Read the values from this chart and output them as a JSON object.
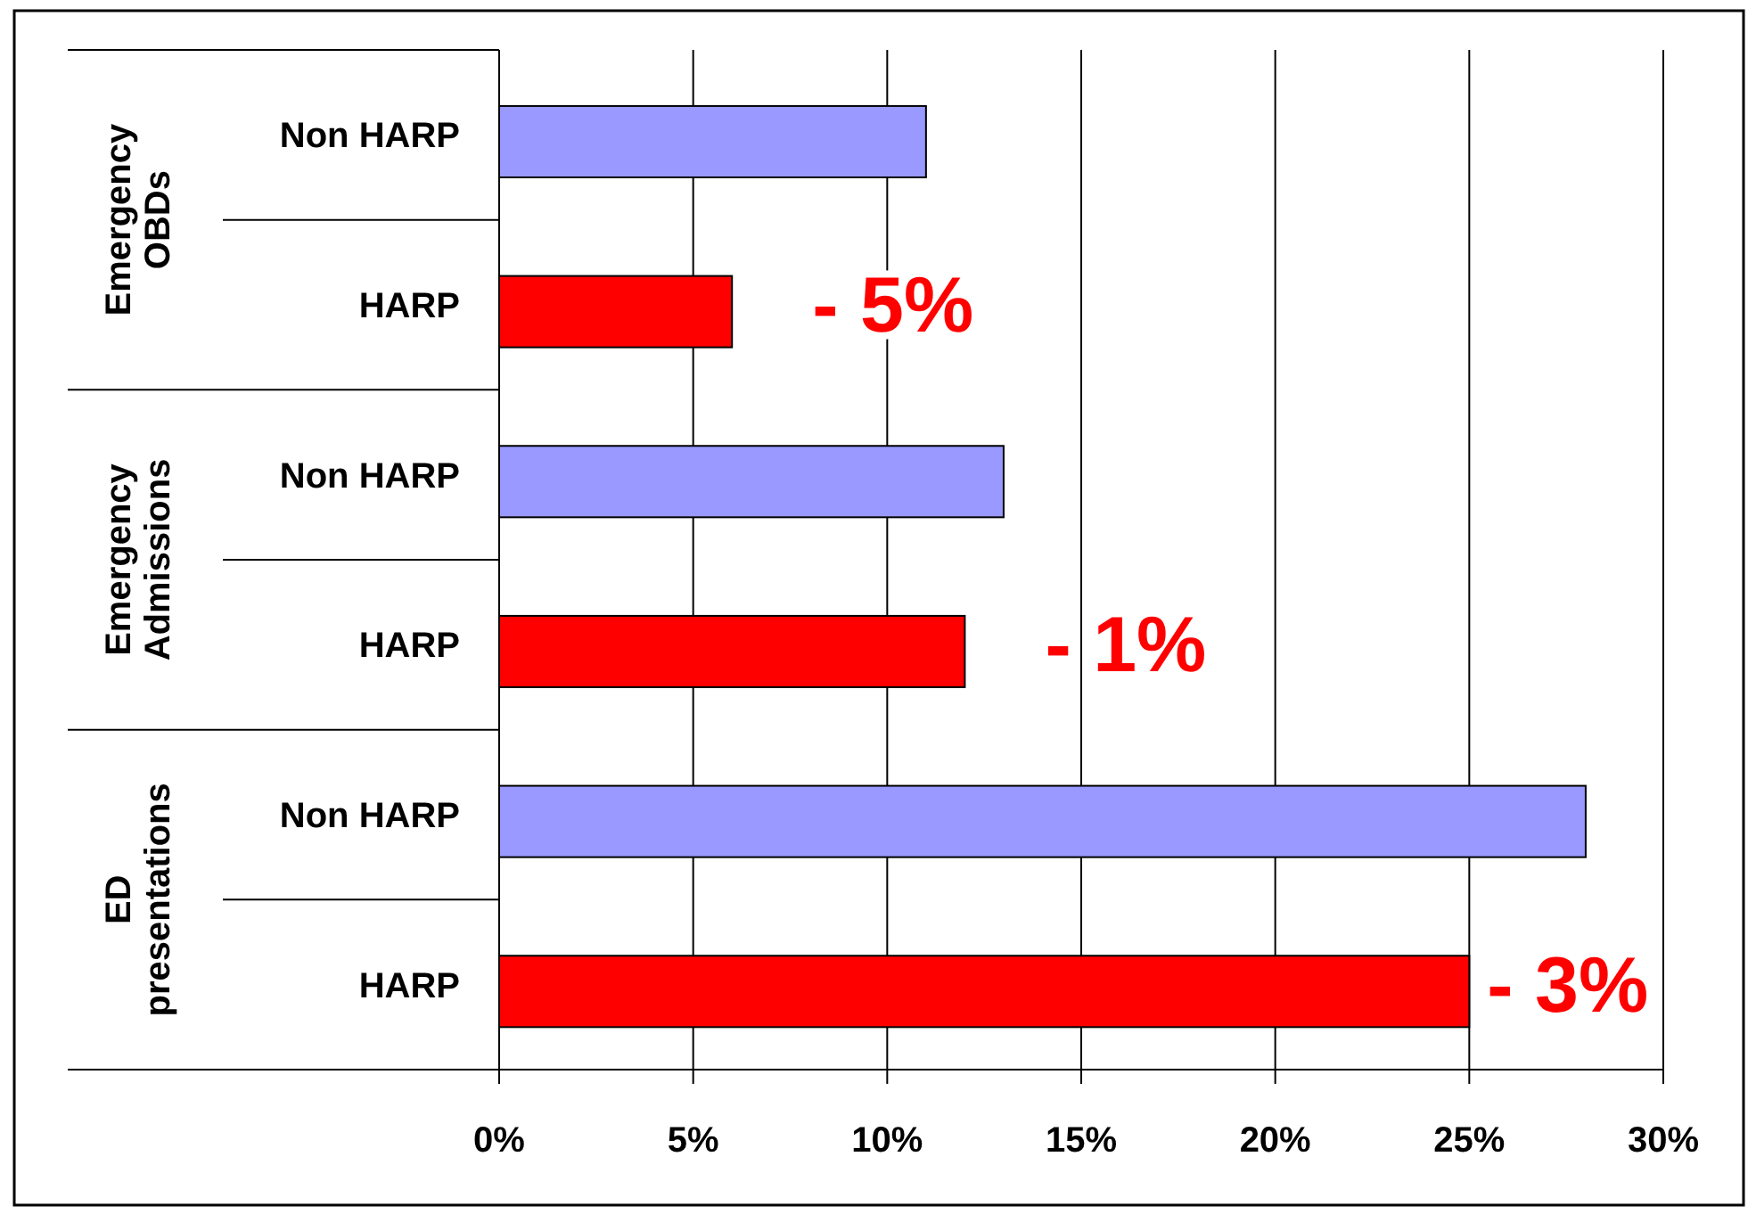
{
  "chart_data": {
    "type": "bar",
    "orientation": "horizontal",
    "categories": [
      "Non HARP",
      "HARP",
      "Non HARP",
      "HARP",
      "Non HARP",
      "HARP"
    ],
    "values": [
      11,
      6,
      13,
      12,
      28,
      25
    ],
    "colors": [
      "#9999ff",
      "#ff0000",
      "#9999ff",
      "#ff0000",
      "#9999ff",
      "#ff0000"
    ],
    "xlim": [
      0,
      30
    ],
    "xticks": [
      {
        "value": 0,
        "label": "0%"
      },
      {
        "value": 5,
        "label": "5%"
      },
      {
        "value": 10,
        "label": "10%"
      },
      {
        "value": 15,
        "label": "15%"
      },
      {
        "value": 20,
        "label": "20%"
      },
      {
        "value": 25,
        "label": "25%"
      },
      {
        "value": 30,
        "label": "30%"
      }
    ],
    "grid": "x",
    "annotations": [
      "Emergency OBDs",
      "Emergency Admissions",
      "ED presentations",
      "- 5%",
      "- 1%",
      "- 3%"
    ]
  }
}
